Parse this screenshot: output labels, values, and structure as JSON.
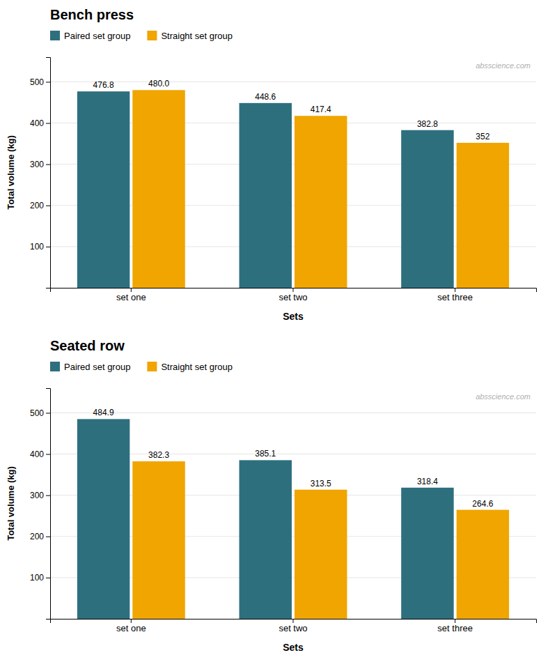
{
  "chart_data": [
    {
      "type": "bar",
      "title": "Bench press",
      "categories": [
        "set one",
        "set two",
        "set three"
      ],
      "series": [
        {
          "name": "Paired set group",
          "color": "#2e6f7e",
          "values": [
            476.8,
            448.6,
            382.8
          ]
        },
        {
          "name": "Straight set group",
          "color": "#f0a500",
          "values": [
            480.0,
            417.4,
            352.0
          ],
          "value_labels": [
            "480.0",
            "417.4",
            "352"
          ]
        }
      ],
      "xlabel": "Sets",
      "ylabel": "Total volume (kg)",
      "ylim": [
        0,
        560
      ],
      "yticks": [
        100,
        200,
        300,
        400,
        500
      ],
      "data_labels": true,
      "annotations": [
        "absscience.com"
      ]
    },
    {
      "type": "bar",
      "title": "Seated row",
      "categories": [
        "set one",
        "set two",
        "set three"
      ],
      "series": [
        {
          "name": "Paired set group",
          "color": "#2e6f7e",
          "values": [
            484.9,
            385.1,
            318.4
          ]
        },
        {
          "name": "Straight set group",
          "color": "#f0a500",
          "values": [
            382.3,
            313.5,
            264.6
          ]
        }
      ],
      "xlabel": "Sets",
      "ylabel": "Total volume (kg)",
      "ylim": [
        0,
        560
      ],
      "yticks": [
        100,
        200,
        300,
        400,
        500
      ],
      "data_labels": true,
      "annotations": [
        "absscience.com"
      ]
    }
  ]
}
